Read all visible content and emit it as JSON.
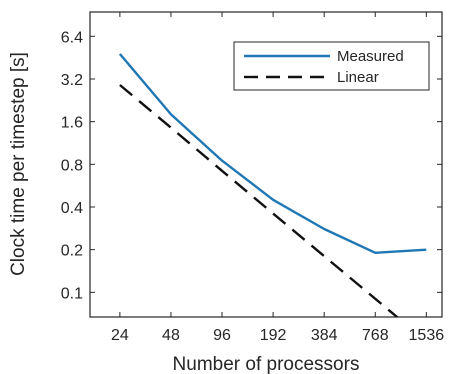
{
  "chart_data": {
    "type": "line",
    "xscale": "log2",
    "yscale": "log2",
    "x": [
      24,
      48,
      96,
      192,
      384,
      768,
      1536
    ],
    "xticks": [
      "24",
      "48",
      "96",
      "192",
      "384",
      "768",
      "1536"
    ],
    "yticks": [
      {
        "value": 0.1,
        "label": "0.1"
      },
      {
        "value": 0.2,
        "label": "0.2"
      },
      {
        "value": 0.4,
        "label": "0.4"
      },
      {
        "value": 0.8,
        "label": "0.8"
      },
      {
        "value": 1.6,
        "label": "1.6"
      },
      {
        "value": 3.2,
        "label": "3.2"
      },
      {
        "value": 6.4,
        "label": "6.4"
      }
    ],
    "xlim": [
      16,
      1900
    ],
    "ylim": [
      0.067,
      9.5
    ],
    "xlabel": "Number of processors",
    "ylabel": "Clock time per timestep [s]",
    "grid": false,
    "legend_position": "top-right",
    "series": [
      {
        "name": "Measured",
        "style": "solid",
        "color": "#1f77b4",
        "x": [
          24,
          48,
          96,
          192,
          384,
          768,
          1536
        ],
        "y": [
          4.8,
          1.8,
          0.85,
          0.45,
          0.28,
          0.19,
          0.2
        ]
      },
      {
        "name": "Linear",
        "style": "dashed",
        "color": "#111111",
        "x": [
          24,
          48,
          96,
          192,
          384,
          768,
          1080
        ],
        "y": [
          2.9,
          1.45,
          0.72,
          0.36,
          0.18,
          0.09,
          0.064
        ]
      }
    ]
  }
}
